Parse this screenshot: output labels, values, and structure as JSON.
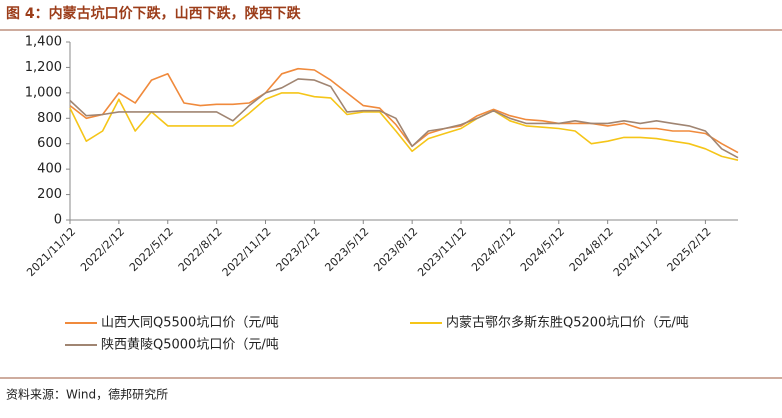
{
  "chart_data": {
    "type": "line",
    "title": "图 4：内蒙古坑口价下跌，山西下跌，陕西下跌",
    "source": "资料来源：Wind，德邦研究所",
    "categories": [
      "2021/11/12",
      null,
      null,
      "2022/2/12",
      null,
      null,
      "2022/5/12",
      null,
      null,
      "2022/8/12",
      null,
      null,
      "2022/11/12",
      null,
      null,
      "2023/2/12",
      null,
      null,
      "2023/5/12",
      null,
      null,
      "2023/8/12",
      null,
      null,
      "2023/11/12",
      null,
      null,
      "2024/2/12",
      null,
      null,
      "2024/5/12",
      null,
      null,
      "2024/8/12",
      null,
      null,
      "2024/11/12",
      null,
      null,
      "2025/2/12",
      null,
      null
    ],
    "series": [
      {
        "name": "山西大同Q5500坑口价（元/吨",
        "color": "#f08a3c",
        "values": [
          900,
          800,
          830,
          1000,
          920,
          1100,
          1150,
          920,
          900,
          910,
          910,
          920,
          1000,
          1150,
          1190,
          1180,
          1100,
          1000,
          900,
          880,
          750,
          580,
          680,
          720,
          740,
          820,
          870,
          820,
          790,
          780,
          760,
          760,
          760,
          740,
          760,
          720,
          720,
          700,
          700,
          680,
          600,
          530
        ]
      },
      {
        "name": "内蒙古鄂尔多斯东胜Q5200坑口价（元/吨",
        "color": "#f5c518",
        "values": [
          880,
          620,
          700,
          950,
          700,
          850,
          740,
          740,
          740,
          740,
          740,
          840,
          950,
          1000,
          1000,
          970,
          960,
          830,
          850,
          850,
          700,
          540,
          640,
          680,
          720,
          800,
          860,
          780,
          740,
          730,
          720,
          700,
          600,
          620,
          650,
          650,
          640,
          620,
          600,
          560,
          500,
          470
        ]
      },
      {
        "name": "陕西黄陵Q5000坑口价（元/吨",
        "color": "#a08572",
        "values": [
          940,
          820,
          830,
          850,
          850,
          850,
          850,
          850,
          850,
          850,
          780,
          900,
          1000,
          1040,
          1110,
          1100,
          1050,
          850,
          860,
          860,
          800,
          580,
          700,
          720,
          750,
          800,
          860,
          800,
          760,
          760,
          760,
          780,
          760,
          760,
          780,
          760,
          780,
          760,
          740,
          700,
          560,
          490
        ]
      }
    ],
    "ylim": [
      0,
      1400
    ],
    "yticks": [
      0,
      200,
      400,
      600,
      800,
      {
        "value": 1000,
        "label": "1,000"
      },
      {
        "value": 1200,
        "label": "1,200"
      },
      {
        "value": 1400,
        "label": "1,400"
      }
    ],
    "grid": false
  }
}
